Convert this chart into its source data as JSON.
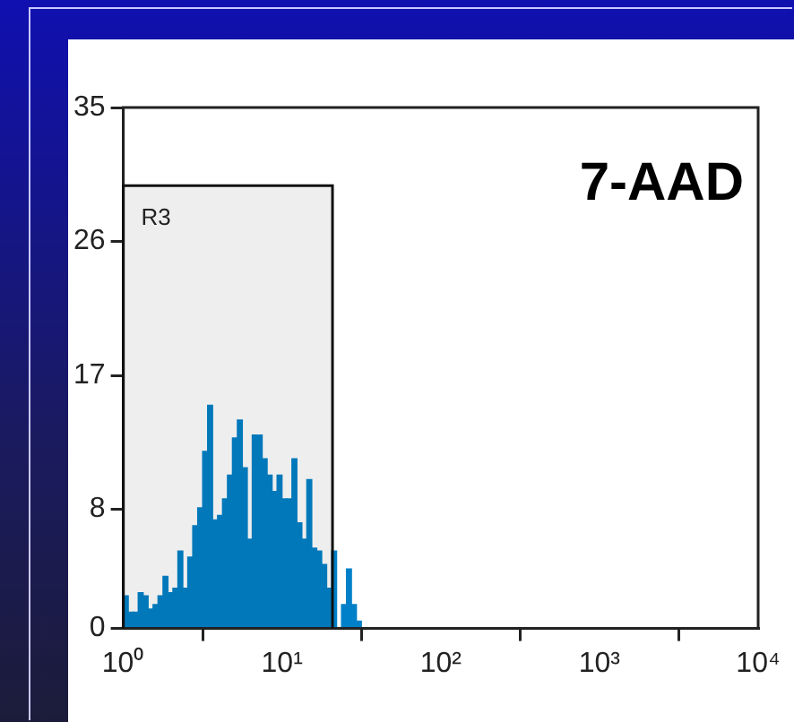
{
  "chart_data": {
    "type": "histogram",
    "title": "7-AAD",
    "bins": [
      1,
      1.075,
      1.155,
      1.241,
      1.334,
      1.433,
      1.54,
      1.655,
      1.778,
      1.911,
      2.054,
      2.207,
      2.371,
      2.548,
      2.738,
      2.943,
      3.162,
      3.398,
      3.652,
      3.924,
      4.217,
      4.532,
      4.87,
      5.233,
      5.623,
      6.043,
      6.494,
      6.978,
      7.499,
      8.058,
      8.66,
      9.306,
      10,
      10.75,
      11.55,
      12.41,
      13.34,
      14.33,
      15.4,
      16.55,
      17.78,
      19.11,
      20.54,
      22.07,
      23.71,
      25.48,
      27.38,
      29.43,
      31.62
    ],
    "values": [
      2.2,
      1.1,
      1.1,
      2.4,
      2.2,
      1.3,
      1.6,
      2.2,
      3.5,
      2.4,
      2.7,
      5.2,
      2.7,
      4.8,
      6.9,
      8.1,
      11.9,
      15,
      7.3,
      7.6,
      8.7,
      10.3,
      12.8,
      14,
      10.8,
      6,
      13,
      13,
      11.4,
      10.3,
      9.2,
      10.3,
      8.7,
      8.7,
      11.4,
      7.1,
      6,
      10,
      5.4,
      5.2,
      4.3,
      2.7,
      5.2,
      0,
      1.6,
      4,
      1.6,
      0.5
    ],
    "color": "#0080c8",
    "log": "x",
    "xlim": [
      1,
      10000
    ],
    "xticks": [
      {
        "value": 1,
        "label": "10⁰"
      },
      {
        "value": 10,
        "label": "10¹"
      },
      {
        "value": 100,
        "label": "10²"
      },
      {
        "value": 1000,
        "label": "10³"
      },
      {
        "value": 10000,
        "label": "10⁴"
      }
    ],
    "ylim": [
      0,
      35
    ],
    "yticks": [
      0,
      8,
      17,
      26,
      35
    ],
    "grid": false,
    "bands": [
      {
        "axis": "x",
        "from": 1,
        "to": 20.8,
        "label": "R3",
        "color": "#111111"
      }
    ]
  }
}
